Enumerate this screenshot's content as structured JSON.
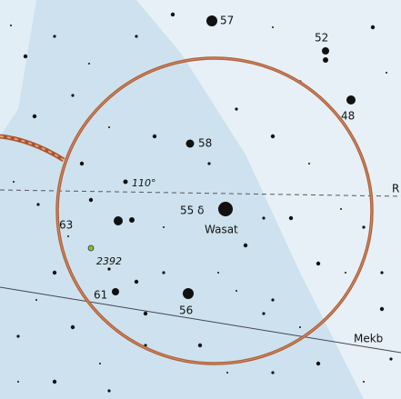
{
  "labels": {
    "star_57": "57",
    "star_52": "52",
    "star_48": "48",
    "star_58": "58",
    "cluster": "110°",
    "delta": "55 δ",
    "wasat": "Wasat",
    "star_63": "63",
    "ngc": "2392",
    "star_61": "61",
    "star_56": "56",
    "edge_r": "R",
    "mekb": "Mekb"
  }
}
